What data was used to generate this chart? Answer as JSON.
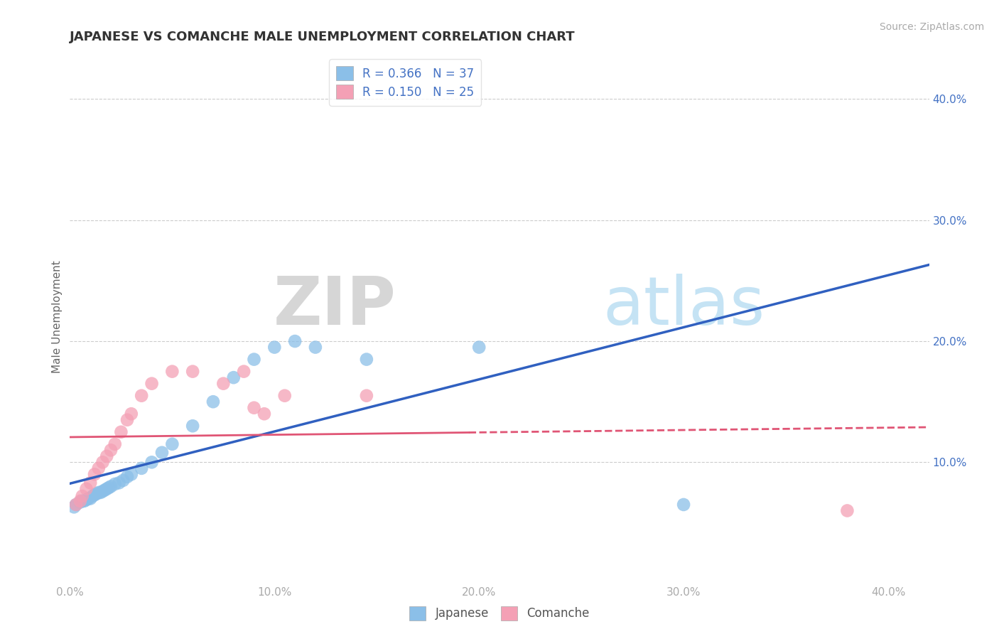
{
  "title": "JAPANESE VS COMANCHE MALE UNEMPLOYMENT CORRELATION CHART",
  "source": "Source: ZipAtlas.com",
  "ylabel": "Male Unemployment",
  "xlim": [
    0.0,
    0.42
  ],
  "ylim": [
    0.0,
    0.44
  ],
  "xtick_labels": [
    "0.0%",
    "10.0%",
    "20.0%",
    "30.0%",
    "40.0%"
  ],
  "xtick_vals": [
    0.0,
    0.1,
    0.2,
    0.3,
    0.4
  ],
  "ytick_labels": [
    "10.0%",
    "20.0%",
    "30.0%",
    "40.0%"
  ],
  "ytick_vals": [
    0.1,
    0.2,
    0.3,
    0.4
  ],
  "japanese_color": "#8bbfe8",
  "comanche_color": "#f4a0b5",
  "japanese_line_color": "#3060c0",
  "comanche_line_color": "#e05575",
  "R_japanese": 0.366,
  "N_japanese": 37,
  "R_comanche": 0.15,
  "N_comanche": 25,
  "legend_label_japanese": "Japanese",
  "legend_label_comanche": "Comanche",
  "watermark_zip": "ZIP",
  "watermark_atlas": "atlas",
  "background_color": "#ffffff",
  "grid_color": "#cccccc",
  "title_fontsize": 13,
  "axis_label_fontsize": 11,
  "tick_fontsize": 11,
  "legend_fontsize": 12,
  "source_fontsize": 10,
  "japanese_x": [
    0.002,
    0.003,
    0.005,
    0.006,
    0.007,
    0.008,
    0.009,
    0.01,
    0.011,
    0.012,
    0.013,
    0.014,
    0.015,
    0.016,
    0.017,
    0.018,
    0.019,
    0.02,
    0.022,
    0.024,
    0.026,
    0.028,
    0.03,
    0.035,
    0.04,
    0.045,
    0.05,
    0.06,
    0.07,
    0.08,
    0.09,
    0.1,
    0.11,
    0.12,
    0.145,
    0.2,
    0.3
  ],
  "japanese_y": [
    0.063,
    0.065,
    0.067,
    0.068,
    0.068,
    0.069,
    0.07,
    0.07,
    0.072,
    0.073,
    0.074,
    0.075,
    0.075,
    0.076,
    0.077,
    0.078,
    0.079,
    0.08,
    0.082,
    0.083,
    0.085,
    0.088,
    0.09,
    0.095,
    0.1,
    0.108,
    0.115,
    0.13,
    0.15,
    0.17,
    0.185,
    0.195,
    0.2,
    0.195,
    0.185,
    0.195,
    0.065
  ],
  "comanche_x": [
    0.003,
    0.005,
    0.006,
    0.008,
    0.01,
    0.012,
    0.014,
    0.016,
    0.018,
    0.02,
    0.022,
    0.025,
    0.028,
    0.03,
    0.035,
    0.04,
    0.05,
    0.06,
    0.075,
    0.085,
    0.09,
    0.095,
    0.105,
    0.145,
    0.38
  ],
  "comanche_y": [
    0.065,
    0.068,
    0.072,
    0.078,
    0.083,
    0.09,
    0.095,
    0.1,
    0.105,
    0.11,
    0.115,
    0.125,
    0.135,
    0.14,
    0.155,
    0.165,
    0.175,
    0.175,
    0.165,
    0.175,
    0.145,
    0.14,
    0.155,
    0.155,
    0.06
  ]
}
